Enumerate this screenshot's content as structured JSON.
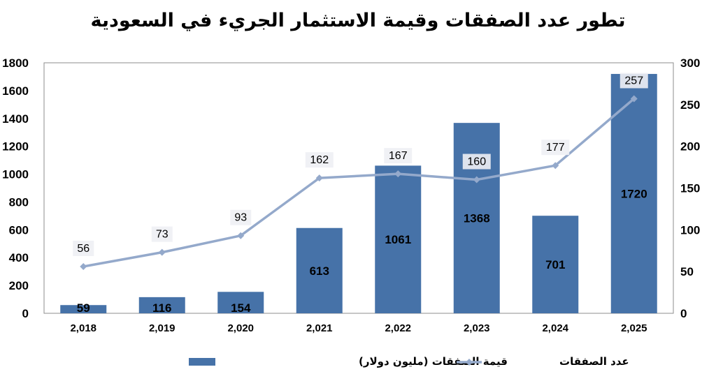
{
  "chart_data": {
    "type": "bar",
    "title": "تطور عدد الصفقات وقيمة الاستثمار الجريء في السعودية",
    "categories": [
      "2,018",
      "2,019",
      "2,020",
      "2,021",
      "2,022",
      "2,023",
      "2,024",
      "2,025"
    ],
    "series": [
      {
        "name": "قيمة الصفقات (مليون دولار)",
        "type": "bar",
        "axis": "left",
        "values": [
          59,
          116,
          154,
          613,
          1061,
          1368,
          701,
          1720
        ],
        "color": "#4672a8"
      },
      {
        "name": "عدد الصفقات",
        "type": "line",
        "axis": "right",
        "values": [
          56,
          73,
          93,
          162,
          167,
          160,
          177,
          257
        ],
        "color": "#94a9cb"
      }
    ],
    "ylim_left": [
      0,
      1800
    ],
    "yticks_left": [
      "0",
      "200",
      "400",
      "600",
      "800",
      "1000",
      "1200",
      "1400",
      "1600",
      "1800"
    ],
    "ylim_right": [
      0,
      300
    ],
    "yticks_right": [
      "0",
      "50",
      "100",
      "150",
      "200",
      "250",
      "300"
    ],
    "grid": false,
    "legend_position": "bottom"
  }
}
